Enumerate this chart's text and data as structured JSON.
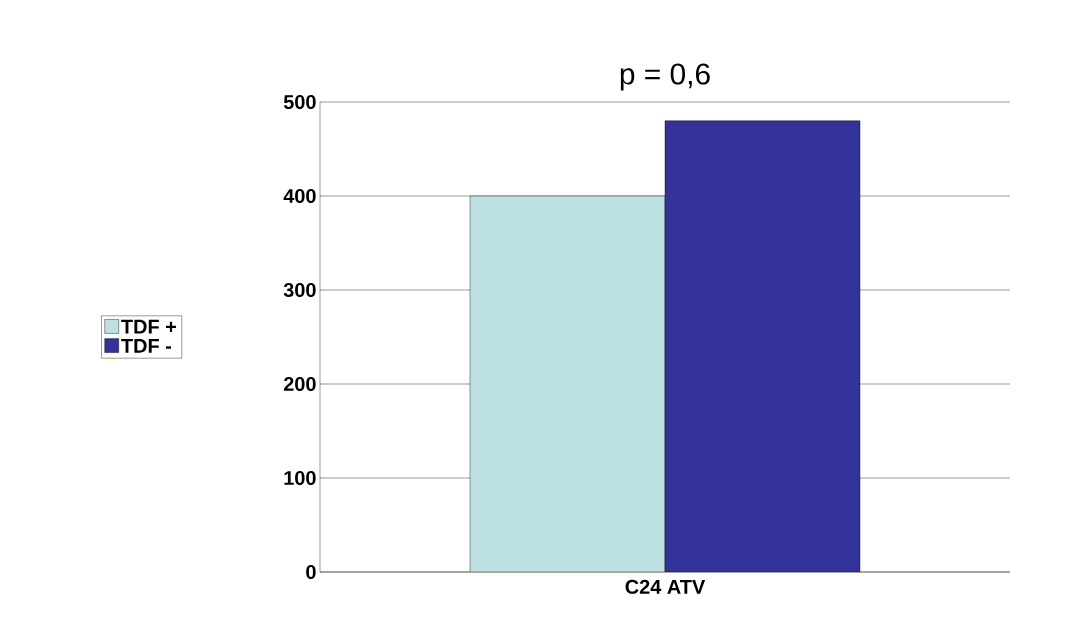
{
  "chart_data": {
    "type": "bar",
    "title": "p = 0,6",
    "categories": [
      "C24 ATV"
    ],
    "series": [
      {
        "name": "TDF +",
        "color": "#bde0e3",
        "values": [
          400
        ]
      },
      {
        "name": "TDF -",
        "color": "#333399",
        "values": [
          480
        ]
      }
    ],
    "ylim": [
      0,
      500
    ],
    "yticks": [
      0,
      100,
      200,
      300,
      400,
      500
    ],
    "grid": "y",
    "legend": "left"
  }
}
